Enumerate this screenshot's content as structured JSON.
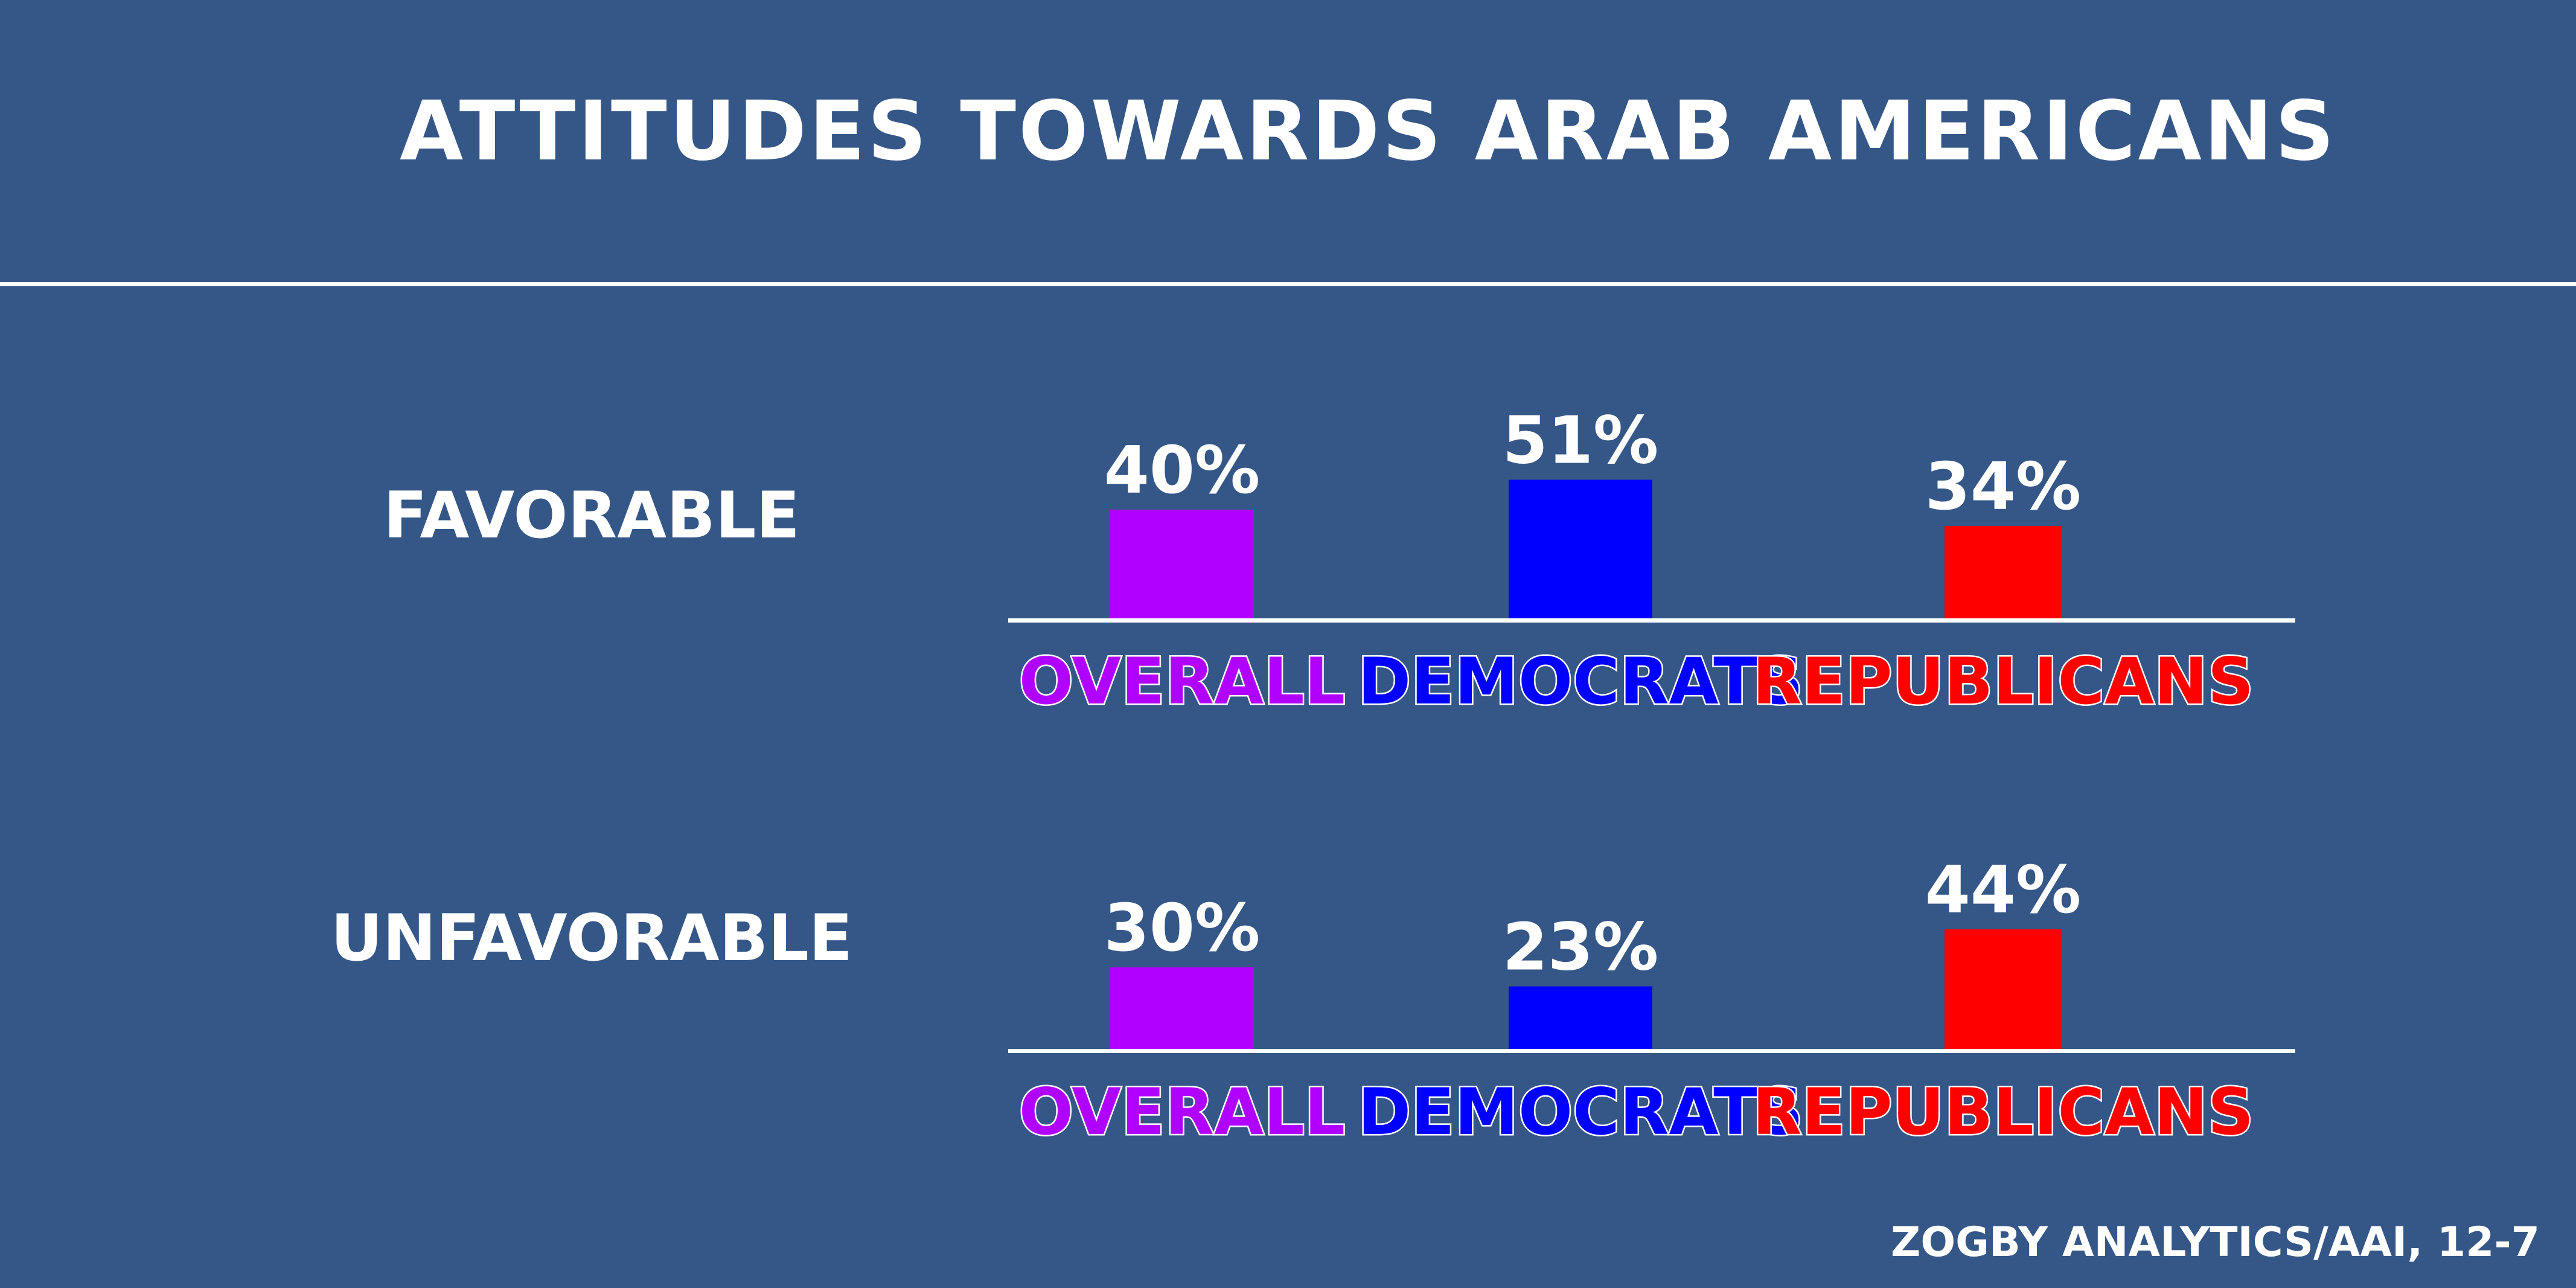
{
  "title": "ATTITUDES TOWARDS ARAB AMERICANS",
  "source": "ZOGBY ANALYTICS/AAI, 12-7",
  "chart_data": [
    {
      "type": "bar",
      "group": "FAVORABLE",
      "categories": [
        "OVERALL",
        "DEMOCRATS",
        "REPUBLICANS"
      ],
      "values": [
        40,
        51,
        34
      ],
      "value_labels": [
        "40%",
        "51%",
        "34%"
      ],
      "colors": [
        "#b000ff",
        "#0000ff",
        "#ff0000"
      ],
      "ylim": [
        0,
        100
      ]
    },
    {
      "type": "bar",
      "group": "UNFAVORABLE",
      "categories": [
        "OVERALL",
        "DEMOCRATS",
        "REPUBLICANS"
      ],
      "values": [
        30,
        23,
        44
      ],
      "value_labels": [
        "30%",
        "23%",
        "44%"
      ],
      "colors": [
        "#b000ff",
        "#0000ff",
        "#ff0000"
      ],
      "ylim": [
        0,
        100
      ]
    }
  ]
}
